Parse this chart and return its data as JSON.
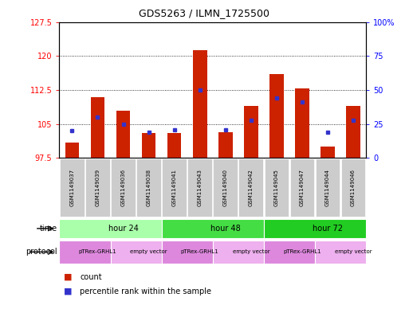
{
  "title": "GDS5263 / ILMN_1725500",
  "samples": [
    "GSM1149037",
    "GSM1149039",
    "GSM1149036",
    "GSM1149038",
    "GSM1149041",
    "GSM1149043",
    "GSM1149040",
    "GSM1149042",
    "GSM1149045",
    "GSM1149047",
    "GSM1149044",
    "GSM1149046"
  ],
  "count_values": [
    101.0,
    111.0,
    108.0,
    103.0,
    103.0,
    121.2,
    103.2,
    109.0,
    116.0,
    112.8,
    100.0,
    109.0
  ],
  "percentile_values": [
    20,
    30,
    25,
    19,
    21,
    50,
    21,
    28,
    44,
    41,
    19,
    28
  ],
  "baseline": 97.5,
  "ylim_left": [
    97.5,
    127.5
  ],
  "ylim_right": [
    0,
    100
  ],
  "yticks_left": [
    97.5,
    105.0,
    112.5,
    120.0,
    127.5
  ],
  "yticks_right": [
    0,
    25,
    50,
    75,
    100
  ],
  "bar_color": "#cc2200",
  "blue_color": "#3333cc",
  "time_groups": [
    {
      "label": "hour 24",
      "start": 0,
      "end": 4,
      "color": "#aaffaa"
    },
    {
      "label": "hour 48",
      "start": 4,
      "end": 8,
      "color": "#44dd44"
    },
    {
      "label": "hour 72",
      "start": 8,
      "end": 12,
      "color": "#22cc22"
    }
  ],
  "protocol_groups": [
    {
      "label": "pTRex-GRHL1",
      "start": 0,
      "end": 2,
      "color": "#dd88dd"
    },
    {
      "label": "empty vector",
      "start": 2,
      "end": 4,
      "color": "#eeb0ee"
    },
    {
      "label": "pTRex-GRHL1",
      "start": 4,
      "end": 6,
      "color": "#dd88dd"
    },
    {
      "label": "empty vector",
      "start": 6,
      "end": 8,
      "color": "#eeb0ee"
    },
    {
      "label": "pTRex-GRHL1",
      "start": 8,
      "end": 10,
      "color": "#dd88dd"
    },
    {
      "label": "empty vector",
      "start": 10,
      "end": 12,
      "color": "#eeb0ee"
    }
  ],
  "bg_color": "#ffffff",
  "sample_bg_color": "#cccccc"
}
